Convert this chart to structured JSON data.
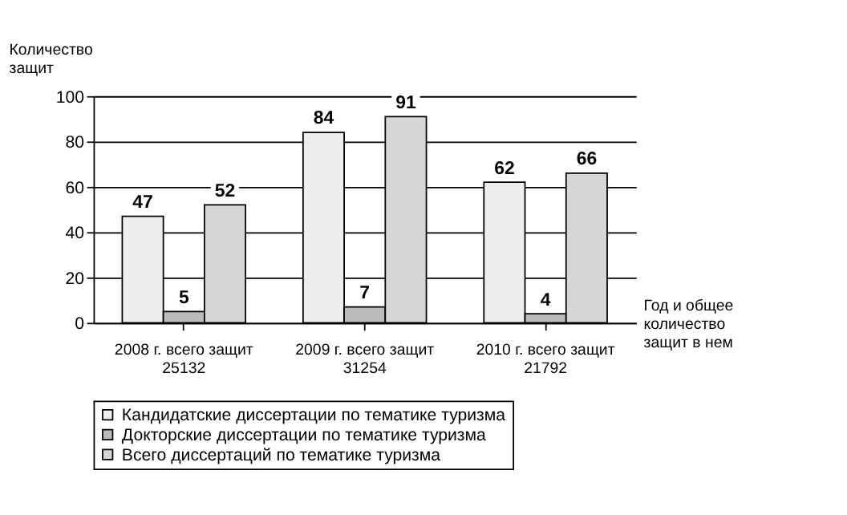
{
  "chart_data": {
    "type": "bar",
    "ylabel": "Количество\nзащит",
    "xlabel": "Год и общее\nколичество\nзащит в нем",
    "categories": [
      "2008 г. всего защит\n25132",
      "2009 г. всего защит\n31254",
      "2010 г. всего защит\n21792"
    ],
    "series": [
      {
        "name": "Кандидатские диссертации по тематике туризма",
        "color": "#eeeeee",
        "values": [
          47,
          84,
          62
        ]
      },
      {
        "name": "Докторские диссертации по тематике туризма",
        "color": "#bbbbbb",
        "values": [
          5,
          7,
          4
        ]
      },
      {
        "name": "Всего диссертаций по тематике туризма",
        "color": "#d6d6d6",
        "values": [
          52,
          91,
          66
        ]
      }
    ],
    "ylim": [
      0,
      100
    ],
    "yticks": [
      0,
      20,
      40,
      60,
      80,
      100
    ],
    "grid": "y",
    "legend": "bottom",
    "data_labels": true
  }
}
